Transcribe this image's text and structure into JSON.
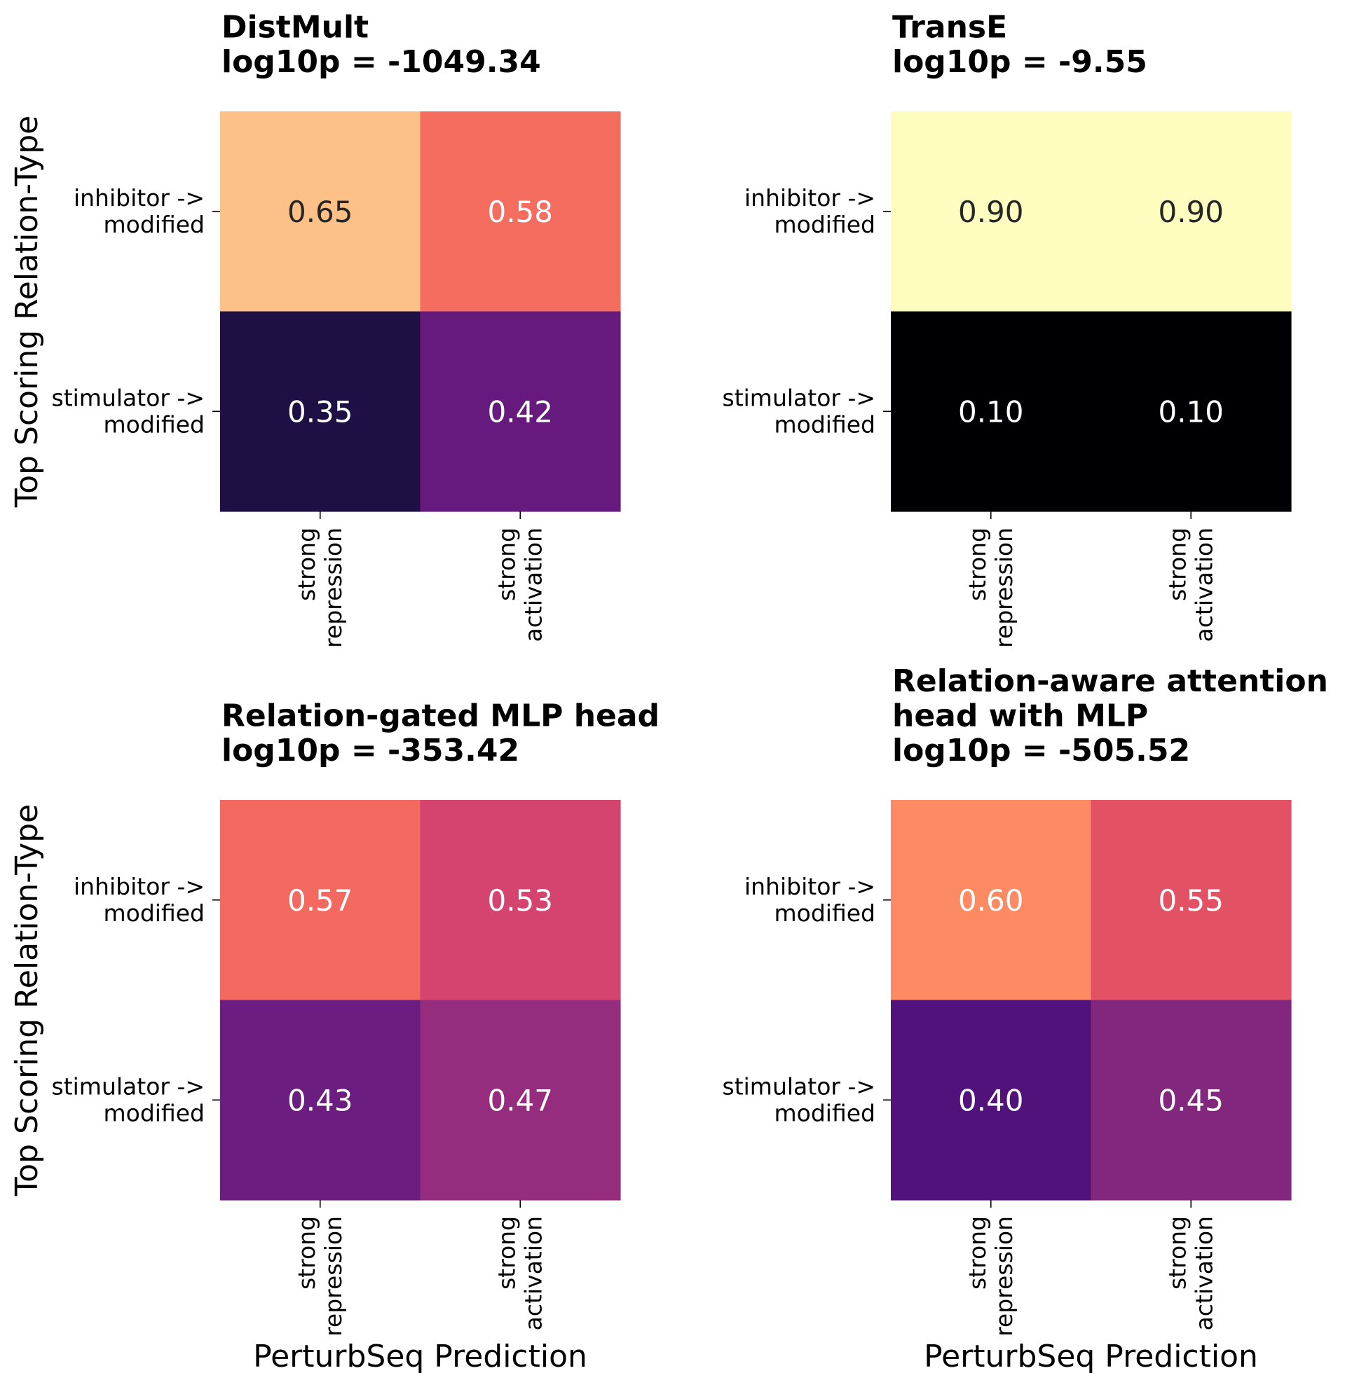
{
  "chart_data": [
    {
      "type": "heatmap",
      "title": "DistMult\nlog10p = -1049.34",
      "model": "DistMult",
      "log10p": -1049.34,
      "xlabel": "",
      "ylabel": "Top Scoring Relation-Type",
      "x_categories": [
        "strong\nrepression",
        "strong\nactivation"
      ],
      "y_categories": [
        "inhibitor ->\nmodified",
        "stimulator ->\nmodified"
      ],
      "values": [
        [
          0.65,
          0.58
        ],
        [
          0.35,
          0.42
        ]
      ],
      "cell_colors": [
        [
          "#fdc087",
          "#f46d5f"
        ],
        [
          "#1e1045",
          "#661a7d"
        ]
      ],
      "annotation_colors": [
        [
          "#262626",
          "#ffffff"
        ],
        [
          "#ffffff",
          "#ffffff"
        ]
      ],
      "colormap": "magma"
    },
    {
      "type": "heatmap",
      "title": "TransE\nlog10p = -9.55",
      "model": "TransE",
      "log10p": -9.55,
      "xlabel": "",
      "ylabel": "",
      "x_categories": [
        "strong\nrepression",
        "strong\nactivation"
      ],
      "y_categories": [
        "inhibitor ->\nmodified",
        "stimulator ->\nmodified"
      ],
      "values": [
        [
          0.9,
          0.9
        ],
        [
          0.1,
          0.1
        ]
      ],
      "cell_colors": [
        [
          "#fcfdbf",
          "#fcfdbf"
        ],
        [
          "#000004",
          "#000004"
        ]
      ],
      "annotation_colors": [
        [
          "#262626",
          "#262626"
        ],
        [
          "#ffffff",
          "#ffffff"
        ]
      ],
      "colormap": "magma"
    },
    {
      "type": "heatmap",
      "title": "Relation-gated MLP head\nlog10p = -353.42",
      "model": "Relation-gated MLP head",
      "log10p": -353.42,
      "xlabel": "PerturbSeq Prediction",
      "ylabel": "Top Scoring Relation-Type",
      "x_categories": [
        "strong\nrepression",
        "strong\nactivation"
      ],
      "y_categories": [
        "inhibitor ->\nmodified",
        "stimulator ->\nmodified"
      ],
      "values": [
        [
          0.57,
          0.53
        ],
        [
          0.43,
          0.47
        ]
      ],
      "cell_colors": [
        [
          "#f3695f",
          "#d5446e"
        ],
        [
          "#6c1d80",
          "#962c7e"
        ]
      ],
      "annotation_colors": [
        [
          "#ffffff",
          "#ffffff"
        ],
        [
          "#ffffff",
          "#ffffff"
        ]
      ],
      "colormap": "magma"
    },
    {
      "type": "heatmap",
      "title": "Relation-aware attention\nhead with MLP\nlog10p = -505.52",
      "model": "Relation-aware attention head with MLP",
      "log10p": -505.52,
      "xlabel": "PerturbSeq Prediction",
      "ylabel": "",
      "x_categories": [
        "strong\nrepression",
        "strong\nactivation"
      ],
      "y_categories": [
        "inhibitor ->\nmodified",
        "stimulator ->\nmodified"
      ],
      "values": [
        [
          0.6,
          0.55
        ],
        [
          0.4,
          0.45
        ]
      ],
      "cell_colors": [
        [
          "#fc8a62",
          "#e35165"
        ],
        [
          "#51127c",
          "#82267e"
        ]
      ],
      "annotation_colors": [
        [
          "#ffffff",
          "#ffffff"
        ],
        [
          "#ffffff",
          "#ffffff"
        ]
      ],
      "colormap": "magma"
    }
  ]
}
